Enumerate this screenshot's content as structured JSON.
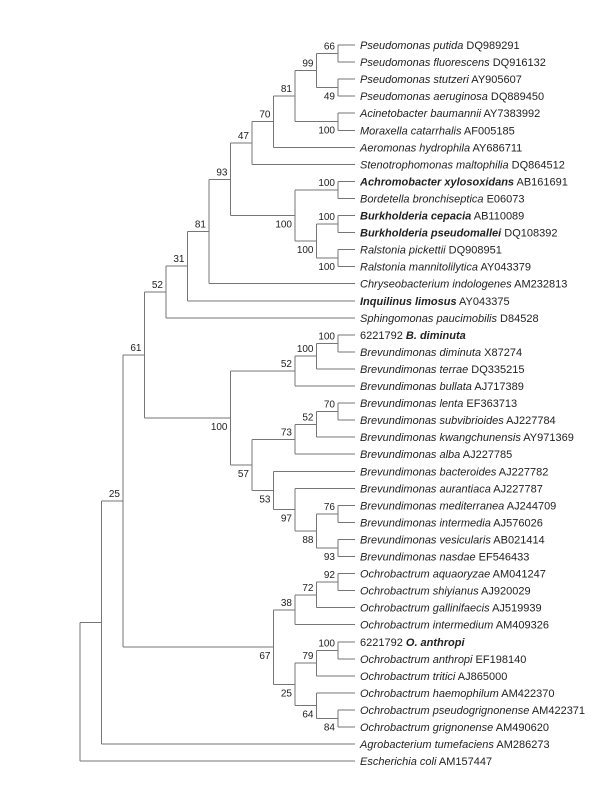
{
  "figure": {
    "type": "phylogenetic-tree",
    "description": "16S rRNA gene phylogenetic tree (cladogram) with bootstrap support values",
    "background": "#ffffff",
    "line_color": "#767676",
    "text_color": "#222222"
  },
  "tree": {
    "children": [
      {
        "children": [
          {
            "bs": "25",
            "children": [
              {
                "bs": "61",
                "children": [
                  {
                    "bs": "52",
                    "children": [
                      {
                        "bs": "31",
                        "children": [
                          {
                            "bs": "81",
                            "children": [
                              {
                                "bs": "93",
                                "children": [
                                  {
                                    "bs": "47",
                                    "children": [
                                      {
                                        "bs": "70",
                                        "children": [
                                          {
                                            "bs": "81",
                                            "children": [
                                              {
                                                "bs": "99",
                                                "children": [
                                                  {
                                                    "bs": "66",
                                                    "children": [
                                                      {
                                                        "name": "Pseudomonas putida",
                                                        "acc": "DQ989291"
                                                      },
                                                      {
                                                        "name": "Pseudomonas fluorescens",
                                                        "acc": "DQ916132"
                                                      }
                                                    ]
                                                  },
                                                  {
                                                    "bs": "49",
                                                    "children": [
                                                      {
                                                        "name": "Pseudomonas stutzeri",
                                                        "acc": "AY905607"
                                                      },
                                                      {
                                                        "name": "Pseudomonas aeruginosa",
                                                        "acc": "DQ889450"
                                                      }
                                                    ]
                                                  }
                                                ]
                                              },
                                              {
                                                "bs": "100",
                                                "children": [
                                                  {
                                                    "name": "Acinetobacter baumannii",
                                                    "acc": "AY7383992"
                                                  },
                                                  {
                                                    "name": "Moraxella catarrhalis",
                                                    "acc": "AF005185"
                                                  }
                                                ]
                                              }
                                            ]
                                          },
                                          {
                                            "name": "Aeromonas hydrophila",
                                            "acc": "AY686711"
                                          }
                                        ]
                                      },
                                      {
                                        "name": "Stenotrophomonas maltophilia",
                                        "acc": "DQ864512"
                                      }
                                    ]
                                  },
                                  {
                                    "bs": "100",
                                    "children": [
                                      {
                                        "bs": "100",
                                        "children": [
                                          {
                                            "name": "Achromobacter xylosoxidans",
                                            "acc": "AB161691",
                                            "bold": true
                                          },
                                          {
                                            "name": "Bordetella bronchiseptica",
                                            "acc": "E06073"
                                          }
                                        ]
                                      },
                                      {
                                        "bs": "100",
                                        "children": [
                                          {
                                            "bs": "100",
                                            "children": [
                                              {
                                                "name": "Burkholderia cepacia",
                                                "acc": "AB110089",
                                                "bold": true
                                              },
                                              {
                                                "name": "Burkholderia pseudomallei",
                                                "acc": "DQ108392",
                                                "bold": true
                                              }
                                            ]
                                          },
                                          {
                                            "bs": "100",
                                            "children": [
                                              {
                                                "name": "Ralstonia pickettii",
                                                "acc": "DQ908951"
                                              },
                                              {
                                                "name": "Ralstonia mannitolilytica",
                                                "acc": "AY043379"
                                              }
                                            ]
                                          }
                                        ]
                                      }
                                    ]
                                  }
                                ]
                              },
                              {
                                "name": "Chryseobacterium indologenes",
                                "acc": "AM232813"
                              }
                            ]
                          },
                          {
                            "name": "Inquilinus limosus",
                            "acc": "AY043375",
                            "bold": true
                          }
                        ]
                      },
                      {
                        "name": "Sphingomonas paucimobilis",
                        "acc": "D84528"
                      }
                    ]
                  },
                  {
                    "bs": "100",
                    "children": [
                      {
                        "bs": "52",
                        "children": [
                          {
                            "bs": "100",
                            "children": [
                              {
                                "bs": "100",
                                "children": [
                                  {
                                    "prefix": "6221792",
                                    "name": "B. diminuta",
                                    "bold": true
                                  },
                                  {
                                    "name": "Brevundimonas diminuta",
                                    "acc": "X87274"
                                  }
                                ]
                              },
                              {
                                "name": "Brevundimonas terrae",
                                "acc": "DQ335215"
                              }
                            ]
                          },
                          {
                            "name": "Brevundimonas bullata",
                            "acc": "AJ717389"
                          }
                        ]
                      },
                      {
                        "bs": "57",
                        "children": [
                          {
                            "bs": "73",
                            "children": [
                              {
                                "bs": "52",
                                "children": [
                                  {
                                    "bs": "70",
                                    "children": [
                                      {
                                        "name": "Brevundimonas lenta",
                                        "acc": "EF363713"
                                      },
                                      {
                                        "name": "Brevundimonas subvibrioides",
                                        "acc": "AJ227784"
                                      }
                                    ]
                                  },
                                  {
                                    "name": "Brevundimonas kwangchunensis",
                                    "acc": "AY971369"
                                  }
                                ]
                              },
                              {
                                "name": "Brevundimonas alba",
                                "acc": "AJ227785"
                              }
                            ]
                          },
                          {
                            "bs": "53",
                            "children": [
                              {
                                "name": "Brevundimonas bacteroides",
                                "acc": "AJ227782"
                              },
                              {
                                "bs": "97",
                                "children": [
                                  {
                                    "name": "Brevundimonas aurantiaca",
                                    "acc": "AJ227787"
                                  },
                                  {
                                    "bs": "88",
                                    "children": [
                                      {
                                        "bs": "76",
                                        "children": [
                                          {
                                            "name": "Brevundimonas mediterranea",
                                            "acc": "AJ244709"
                                          },
                                          {
                                            "name": "Brevundimonas intermedia",
                                            "acc": "AJ576026"
                                          }
                                        ]
                                      },
                                      {
                                        "bs": "93",
                                        "children": [
                                          {
                                            "name": "Brevundimonas vesicularis",
                                            "acc": "AB021414"
                                          },
                                          {
                                            "name": "Brevundimonas nasdae",
                                            "acc": "EF546433"
                                          }
                                        ]
                                      }
                                    ]
                                  }
                                ]
                              }
                            ]
                          }
                        ]
                      }
                    ]
                  }
                ]
              },
              {
                "bs": "67",
                "children": [
                  {
                    "bs": "38",
                    "children": [
                      {
                        "bs": "72",
                        "children": [
                          {
                            "bs": "92",
                            "children": [
                              {
                                "name": "Ochrobactrum aquaoryzae",
                                "acc": "AM041247"
                              },
                              {
                                "name": "Ochrobactrum shiyianus",
                                "acc": "AJ920029"
                              }
                            ]
                          },
                          {
                            "name": "Ochrobactrum gallinifaecis",
                            "acc": "AJ519939"
                          }
                        ]
                      },
                      {
                        "name": "Ochrobactrum intermedium",
                        "acc": "AM409326"
                      }
                    ]
                  },
                  {
                    "bs": "25",
                    "children": [
                      {
                        "bs": "79",
                        "children": [
                          {
                            "bs": "100",
                            "children": [
                              {
                                "prefix": "6221792",
                                "name": "O. anthropi",
                                "bold": true
                              },
                              {
                                "name": "Ochrobactrum anthropi",
                                "acc": "EF198140"
                              }
                            ]
                          },
                          {
                            "name": "Ochrobactrum tritici",
                            "acc": "AJ865000"
                          }
                        ]
                      },
                      {
                        "bs": "64",
                        "children": [
                          {
                            "name": "Ochrobactrum haemophilum",
                            "acc": "AM422370"
                          },
                          {
                            "bs": "84",
                            "children": [
                              {
                                "name": "Ochrobactrum pseudogrignonense",
                                "acc": "AM422371"
                              },
                              {
                                "name": "Ochrobactrum grignonense",
                                "acc": "AM490620"
                              }
                            ]
                          }
                        ]
                      }
                    ]
                  }
                ]
              }
            ]
          },
          {
            "name": "Agrobacterium tumefaciens",
            "acc": "AM286273"
          }
        ]
      },
      {
        "name": "Escherichia coli",
        "acc": "AM157447"
      }
    ]
  }
}
